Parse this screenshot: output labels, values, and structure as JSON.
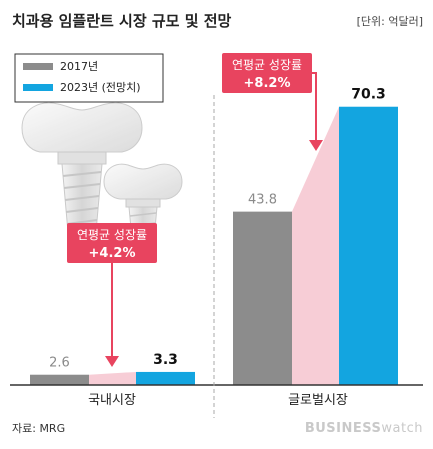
{
  "chart_data": {
    "type": "bar",
    "title": "치과용 임플란트 시장 규모 및 전망",
    "unit_label": "[단위: 억달러]",
    "categories": [
      "국내시장",
      "글로벌시장"
    ],
    "series": [
      {
        "name": "2017년",
        "values": [
          2.6,
          43.8
        ],
        "color": "#8c8c8c"
      },
      {
        "name": "2023년 (전망치)",
        "values": [
          3.3,
          70.3
        ],
        "color": "#13a5e0"
      }
    ],
    "ylim": [
      0,
      72
    ],
    "legend_position": "top-left",
    "connector_color": "#f7cdd6",
    "annotation_color": "#e8445f",
    "annotations": [
      {
        "category": "국내시장",
        "label": "연평균 성장률",
        "value": "+4.2%"
      },
      {
        "category": "글로벌시장",
        "label": "연평균 성장률",
        "value": "+8.2%"
      }
    ]
  },
  "footer": {
    "source": "자료: MRG",
    "brand_bold": "BUSINESS",
    "brand_light": "watch"
  },
  "illustration": {
    "icon": "dental-implant-icon"
  }
}
